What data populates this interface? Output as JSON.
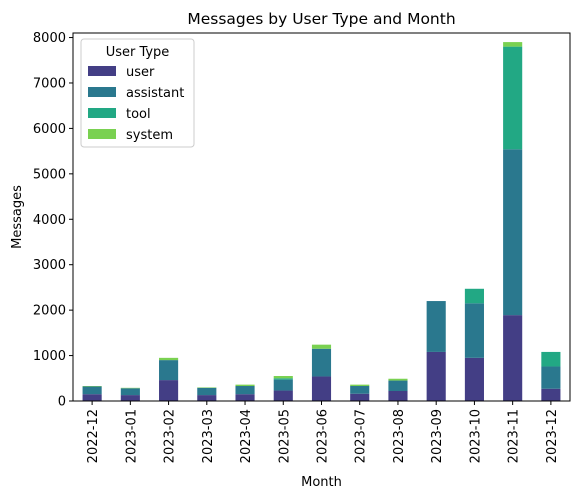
{
  "chart_data": {
    "type": "bar",
    "stacked": true,
    "title": "Messages by User Type and Month",
    "xlabel": "Month",
    "ylabel": "Messages",
    "ylim": [
      0,
      8100
    ],
    "yticks": [
      0,
      1000,
      2000,
      3000,
      4000,
      5000,
      6000,
      7000,
      8000
    ],
    "grid": false,
    "legend": {
      "title": "User Type",
      "placement": "upper-left"
    },
    "categories": [
      "2022-12",
      "2023-01",
      "2023-02",
      "2023-03",
      "2023-04",
      "2023-05",
      "2023-06",
      "2023-07",
      "2023-08",
      "2023-09",
      "2023-10",
      "2023-11",
      "2023-12"
    ],
    "series": [
      {
        "name": "user",
        "color": "#433e85",
        "values": [
          150,
          130,
          460,
          130,
          150,
          230,
          540,
          160,
          220,
          1080,
          950,
          1890,
          270
        ]
      },
      {
        "name": "assistant",
        "color": "#2a788e",
        "values": [
          170,
          150,
          440,
          160,
          180,
          240,
          610,
          170,
          230,
          1120,
          1200,
          3650,
          490
        ]
      },
      {
        "name": "tool",
        "color": "#22a884",
        "values": [
          0,
          0,
          0,
          0,
          0,
          30,
          0,
          0,
          0,
          0,
          320,
          2260,
          320
        ]
      },
      {
        "name": "system",
        "color": "#7ad151",
        "values": [
          10,
          10,
          50,
          10,
          30,
          50,
          90,
          30,
          40,
          0,
          0,
          100,
          0
        ]
      }
    ]
  }
}
